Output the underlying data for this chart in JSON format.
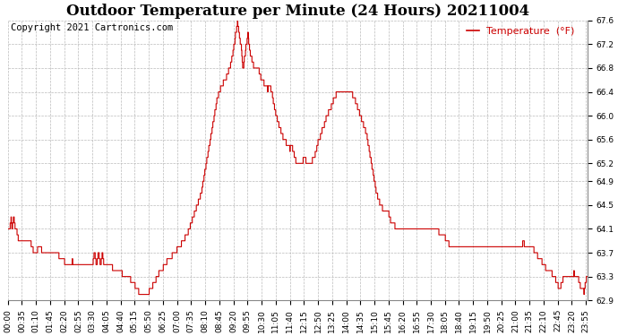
{
  "title": "Outdoor Temperature per Minute (24 Hours) 20211004",
  "copyright_text": "Copyright 2021 Cartronics.com",
  "legend_label": "Temperature  (°F)",
  "line_color": "#cc0000",
  "legend_color": "#cc0000",
  "copyright_color": "#000000",
  "bg_color": "#ffffff",
  "grid_color": "#bbbbbb",
  "ylim": [
    62.9,
    67.6
  ],
  "yticks": [
    62.9,
    63.3,
    63.7,
    64.1,
    64.5,
    64.9,
    65.2,
    65.6,
    66.0,
    66.4,
    66.8,
    67.2,
    67.6
  ],
  "title_fontsize": 12,
  "axis_fontsize": 6.5,
  "copyright_fontsize": 7.5,
  "legend_fontsize": 8,
  "keypoints": [
    [
      0,
      64.1
    ],
    [
      5,
      64.1
    ],
    [
      8,
      64.3
    ],
    [
      10,
      64.1
    ],
    [
      15,
      64.3
    ],
    [
      18,
      64.1
    ],
    [
      22,
      64.1
    ],
    [
      25,
      63.95
    ],
    [
      30,
      63.9
    ],
    [
      35,
      63.9
    ],
    [
      55,
      63.9
    ],
    [
      65,
      63.7
    ],
    [
      70,
      63.7
    ],
    [
      80,
      63.85
    ],
    [
      85,
      63.7
    ],
    [
      90,
      63.7
    ],
    [
      100,
      63.7
    ],
    [
      120,
      63.7
    ],
    [
      140,
      63.55
    ],
    [
      150,
      63.5
    ],
    [
      155,
      63.5
    ],
    [
      160,
      63.55
    ],
    [
      165,
      63.5
    ],
    [
      170,
      63.5
    ],
    [
      180,
      63.5
    ],
    [
      200,
      63.5
    ],
    [
      210,
      63.5
    ],
    [
      215,
      63.7
    ],
    [
      220,
      63.5
    ],
    [
      225,
      63.7
    ],
    [
      230,
      63.5
    ],
    [
      235,
      63.7
    ],
    [
      238,
      63.5
    ],
    [
      245,
      63.5
    ],
    [
      260,
      63.45
    ],
    [
      270,
      63.45
    ],
    [
      290,
      63.3
    ],
    [
      300,
      63.3
    ],
    [
      310,
      63.2
    ],
    [
      315,
      63.15
    ],
    [
      320,
      63.1
    ],
    [
      325,
      63.05
    ],
    [
      330,
      63.0
    ],
    [
      335,
      63.0
    ],
    [
      338,
      62.95
    ],
    [
      340,
      62.95
    ],
    [
      345,
      63.0
    ],
    [
      350,
      63.05
    ],
    [
      355,
      63.1
    ],
    [
      360,
      63.15
    ],
    [
      365,
      63.2
    ],
    [
      370,
      63.3
    ],
    [
      380,
      63.4
    ],
    [
      390,
      63.5
    ],
    [
      400,
      63.6
    ],
    [
      415,
      63.7
    ],
    [
      425,
      63.8
    ],
    [
      435,
      63.9
    ],
    [
      445,
      64.0
    ],
    [
      455,
      64.2
    ],
    [
      465,
      64.4
    ],
    [
      470,
      64.5
    ],
    [
      480,
      64.7
    ],
    [
      485,
      64.9
    ],
    [
      490,
      65.1
    ],
    [
      495,
      65.3
    ],
    [
      500,
      65.5
    ],
    [
      505,
      65.7
    ],
    [
      510,
      65.9
    ],
    [
      515,
      66.1
    ],
    [
      520,
      66.3
    ],
    [
      525,
      66.4
    ],
    [
      530,
      66.5
    ],
    [
      535,
      66.55
    ],
    [
      540,
      66.6
    ],
    [
      545,
      66.7
    ],
    [
      550,
      66.8
    ],
    [
      555,
      66.9
    ],
    [
      557,
      67.0
    ],
    [
      560,
      67.1
    ],
    [
      562,
      67.2
    ],
    [
      564,
      67.3
    ],
    [
      566,
      67.4
    ],
    [
      568,
      67.5
    ],
    [
      570,
      67.55
    ],
    [
      572,
      67.5
    ],
    [
      575,
      67.3
    ],
    [
      578,
      67.2
    ],
    [
      580,
      67.1
    ],
    [
      582,
      66.9
    ],
    [
      584,
      66.8
    ],
    [
      586,
      66.9
    ],
    [
      588,
      67.0
    ],
    [
      590,
      67.1
    ],
    [
      592,
      67.2
    ],
    [
      594,
      67.3
    ],
    [
      596,
      67.35
    ],
    [
      598,
      67.2
    ],
    [
      600,
      67.1
    ],
    [
      605,
      66.95
    ],
    [
      610,
      66.85
    ],
    [
      615,
      66.75
    ],
    [
      618,
      66.8
    ],
    [
      620,
      66.85
    ],
    [
      625,
      66.7
    ],
    [
      630,
      66.6
    ],
    [
      635,
      66.55
    ],
    [
      640,
      66.5
    ],
    [
      645,
      66.45
    ],
    [
      650,
      66.5
    ],
    [
      655,
      66.4
    ],
    [
      660,
      66.2
    ],
    [
      665,
      66.05
    ],
    [
      670,
      65.9
    ],
    [
      675,
      65.8
    ],
    [
      680,
      65.7
    ],
    [
      685,
      65.6
    ],
    [
      690,
      65.55
    ],
    [
      695,
      65.5
    ],
    [
      700,
      65.45
    ],
    [
      705,
      65.5
    ],
    [
      710,
      65.35
    ],
    [
      715,
      65.25
    ],
    [
      720,
      65.2
    ],
    [
      725,
      65.25
    ],
    [
      730,
      65.2
    ],
    [
      735,
      65.3
    ],
    [
      740,
      65.25
    ],
    [
      745,
      65.2
    ],
    [
      750,
      65.25
    ],
    [
      755,
      65.25
    ],
    [
      760,
      65.3
    ],
    [
      765,
      65.4
    ],
    [
      770,
      65.55
    ],
    [
      775,
      65.65
    ],
    [
      780,
      65.75
    ],
    [
      785,
      65.85
    ],
    [
      790,
      65.95
    ],
    [
      795,
      66.05
    ],
    [
      800,
      66.1
    ],
    [
      805,
      66.2
    ],
    [
      810,
      66.3
    ],
    [
      815,
      66.35
    ],
    [
      820,
      66.35
    ],
    [
      825,
      66.4
    ],
    [
      830,
      66.45
    ],
    [
      835,
      66.4
    ],
    [
      840,
      66.4
    ],
    [
      845,
      66.45
    ],
    [
      850,
      66.4
    ],
    [
      855,
      66.35
    ],
    [
      860,
      66.3
    ],
    [
      865,
      66.2
    ],
    [
      870,
      66.1
    ],
    [
      875,
      66.0
    ],
    [
      880,
      65.9
    ],
    [
      885,
      65.8
    ],
    [
      890,
      65.7
    ],
    [
      895,
      65.5
    ],
    [
      900,
      65.3
    ],
    [
      905,
      65.1
    ],
    [
      910,
      64.9
    ],
    [
      915,
      64.7
    ],
    [
      920,
      64.6
    ],
    [
      925,
      64.5
    ],
    [
      930,
      64.45
    ],
    [
      935,
      64.45
    ],
    [
      940,
      64.4
    ],
    [
      945,
      64.35
    ],
    [
      950,
      64.25
    ],
    [
      955,
      64.2
    ],
    [
      960,
      64.15
    ],
    [
      965,
      64.1
    ],
    [
      970,
      64.1
    ],
    [
      980,
      64.1
    ],
    [
      990,
      64.1
    ],
    [
      1000,
      64.1
    ],
    [
      1020,
      64.1
    ],
    [
      1040,
      64.1
    ],
    [
      1060,
      64.1
    ],
    [
      1070,
      64.05
    ],
    [
      1075,
      64.05
    ],
    [
      1080,
      64.0
    ],
    [
      1090,
      63.9
    ],
    [
      1100,
      63.8
    ],
    [
      1110,
      63.75
    ],
    [
      1120,
      63.75
    ],
    [
      1260,
      63.75
    ],
    [
      1270,
      63.75
    ],
    [
      1275,
      63.8
    ],
    [
      1280,
      63.9
    ],
    [
      1285,
      63.75
    ],
    [
      1295,
      63.75
    ],
    [
      1300,
      63.8
    ],
    [
      1305,
      63.75
    ],
    [
      1310,
      63.7
    ],
    [
      1315,
      63.65
    ],
    [
      1320,
      63.6
    ],
    [
      1325,
      63.55
    ],
    [
      1330,
      63.5
    ],
    [
      1335,
      63.45
    ],
    [
      1340,
      63.4
    ],
    [
      1345,
      63.35
    ],
    [
      1350,
      63.35
    ],
    [
      1355,
      63.3
    ],
    [
      1360,
      63.25
    ],
    [
      1365,
      63.15
    ],
    [
      1370,
      63.1
    ],
    [
      1375,
      63.2
    ],
    [
      1380,
      63.3
    ],
    [
      1385,
      63.3
    ],
    [
      1395,
      63.3
    ],
    [
      1400,
      63.3
    ],
    [
      1405,
      63.35
    ],
    [
      1410,
      63.3
    ],
    [
      1415,
      63.3
    ],
    [
      1420,
      63.15
    ],
    [
      1425,
      63.1
    ],
    [
      1430,
      63.05
    ],
    [
      1435,
      63.25
    ],
    [
      1439,
      63.3
    ]
  ]
}
